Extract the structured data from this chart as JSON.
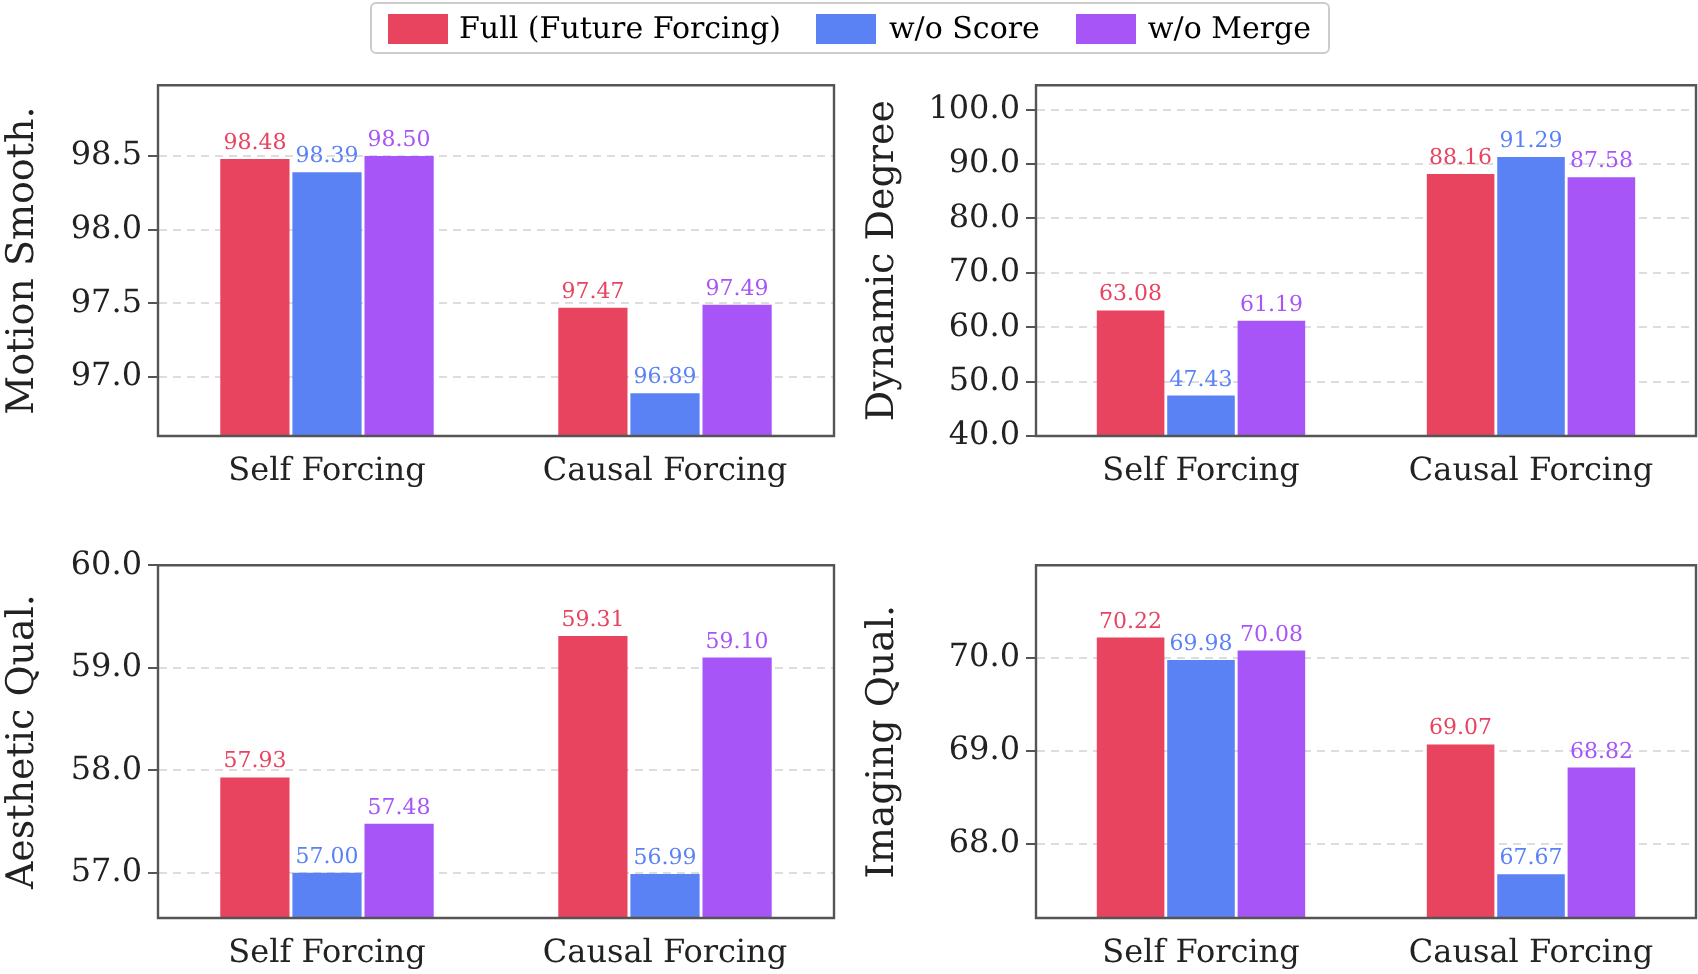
{
  "chart_data": [
    {
      "type": "bar",
      "ylabel": "Motion Smooth.",
      "categories": [
        "Self Forcing",
        "Causal Forcing"
      ],
      "legend": "top",
      "grid": "y",
      "ylim": [
        96.6,
        98.98
      ],
      "yticks": [
        {
          "value": 97,
          "label": "97.0"
        },
        97.5,
        {
          "value": 98,
          "label": "98.0"
        },
        98.5
      ],
      "series": [
        {
          "name": "Full (Future Forcing)",
          "color": "#e8435f",
          "values": [
            98.48,
            97.47
          ],
          "value_labels": [
            "98.48",
            "97.47"
          ]
        },
        {
          "name": "w/o Score",
          "color": "#5b82f5",
          "values": [
            98.39,
            96.89
          ],
          "value_labels": [
            "98.39",
            "96.89"
          ]
        },
        {
          "name": "w/o Merge",
          "color": "#a855f7",
          "values": [
            98.5,
            97.49
          ],
          "value_labels": [
            "98.50",
            "97.49"
          ]
        }
      ]
    },
    {
      "type": "bar",
      "ylabel": "Dynamic Degree",
      "categories": [
        "Self Forcing",
        "Causal Forcing"
      ],
      "grid": "y",
      "ylim": [
        40,
        104.5
      ],
      "yticks": [
        {
          "value": 40,
          "label": "40.0"
        },
        {
          "value": 50,
          "label": "50.0"
        },
        {
          "value": 60,
          "label": "60.0"
        },
        {
          "value": 70,
          "label": "70.0"
        },
        {
          "value": 80,
          "label": "80.0"
        },
        {
          "value": 90,
          "label": "90.0"
        },
        {
          "value": 100,
          "label": "100.0"
        }
      ],
      "series": [
        {
          "color": "#e8435f",
          "values": [
            63.08,
            88.16
          ],
          "value_labels": [
            "63.08",
            "88.16"
          ]
        },
        {
          "color": "#5b82f5",
          "values": [
            47.43,
            91.29
          ],
          "value_labels": [
            "47.43",
            "91.29"
          ]
        },
        {
          "color": "#a855f7",
          "values": [
            61.19,
            87.58
          ],
          "value_labels": [
            "61.19",
            "87.58"
          ]
        }
      ]
    },
    {
      "type": "bar",
      "ylabel": "Aesthetic Qual.",
      "categories": [
        "Self Forcing",
        "Causal Forcing"
      ],
      "grid": "y",
      "ylim": [
        56.56,
        60
      ],
      "yticks": [
        {
          "value": 57,
          "label": "57.0"
        },
        {
          "value": 58,
          "label": "58.0"
        },
        {
          "value": 59,
          "label": "59.0"
        },
        {
          "value": 60,
          "label": "60.0"
        }
      ],
      "series": [
        {
          "color": "#e8435f",
          "values": [
            57.93,
            59.31
          ],
          "value_labels": [
            "57.93",
            "59.31"
          ]
        },
        {
          "color": "#5b82f5",
          "values": [
            57.0,
            56.99
          ],
          "value_labels": [
            "57.00",
            "56.99"
          ]
        },
        {
          "color": "#a855f7",
          "values": [
            57.48,
            59.1
          ],
          "value_labels": [
            "57.48",
            "59.10"
          ]
        }
      ]
    },
    {
      "type": "bar",
      "ylabel": "Imaging Qual.",
      "categories": [
        "Self Forcing",
        "Causal Forcing"
      ],
      "grid": "y",
      "ylim": [
        67.2,
        71.0
      ],
      "yticks": [
        {
          "value": 68,
          "label": "68.0"
        },
        {
          "value": 69,
          "label": "69.0"
        },
        {
          "value": 70,
          "label": "70.0"
        }
      ],
      "series": [
        {
          "color": "#e8435f",
          "values": [
            70.22,
            69.07
          ],
          "value_labels": [
            "70.22",
            "69.07"
          ]
        },
        {
          "color": "#5b82f5",
          "values": [
            69.98,
            67.67
          ],
          "value_labels": [
            "69.98",
            "67.67"
          ]
        },
        {
          "color": "#a855f7",
          "values": [
            70.08,
            68.82
          ],
          "value_labels": [
            "70.08",
            "68.82"
          ]
        }
      ]
    }
  ]
}
